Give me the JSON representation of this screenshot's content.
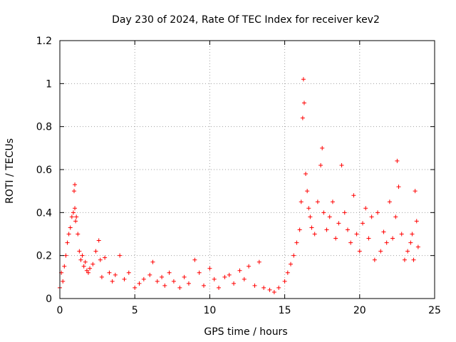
{
  "chart_data": {
    "type": "scatter",
    "title": "Day 230 of 2024, Rate Of TEC Index for receiver kev2",
    "xlabel": "GPS time / hours",
    "ylabel": "ROTI / TECUs",
    "xlim": [
      0,
      25
    ],
    "ylim": [
      0,
      1.2
    ],
    "x_ticks": [
      "0",
      "5",
      "10",
      "15",
      "20",
      "25"
    ],
    "y_ticks": [
      "0",
      "0.2",
      "0.4",
      "0.6",
      "0.8",
      "1",
      "1.2"
    ],
    "grid": true,
    "marker": "+",
    "color": "#ff0000",
    "series": [
      {
        "x": [
          0.0,
          0.1,
          0.2,
          0.3,
          0.4,
          0.5,
          0.6,
          0.7,
          0.8,
          0.9,
          0.95,
          1.0,
          1.0,
          1.05,
          1.1,
          1.2,
          1.3,
          1.4,
          1.5,
          1.6,
          1.7,
          1.8,
          1.9,
          2.0,
          2.2,
          2.4,
          2.6,
          2.7,
          2.8,
          3.0,
          3.3,
          3.5,
          3.7,
          4.0,
          4.3,
          4.6,
          5.0,
          5.3,
          5.6,
          6.0,
          6.2,
          6.5,
          6.8,
          7.0,
          7.3,
          7.6,
          8.0,
          8.3,
          8.6,
          9.0,
          9.3,
          9.6,
          10.0,
          10.3,
          10.6,
          11.0,
          11.3,
          11.6,
          12.0,
          12.3,
          12.6,
          13.0,
          13.3,
          13.6,
          14.0,
          14.3,
          14.6,
          15.0,
          15.2,
          15.4,
          15.6,
          15.8,
          16.0,
          16.1,
          16.2,
          16.25,
          16.3,
          16.4,
          16.5,
          16.6,
          16.7,
          16.8,
          17.0,
          17.2,
          17.4,
          17.5,
          17.6,
          17.8,
          18.0,
          18.2,
          18.4,
          18.6,
          18.8,
          19.0,
          19.2,
          19.4,
          19.6,
          19.8,
          20.0,
          20.2,
          20.4,
          20.6,
          20.8,
          21.0,
          21.2,
          21.4,
          21.6,
          21.8,
          22.0,
          22.2,
          22.4,
          22.5,
          22.6,
          22.8,
          23.0,
          23.2,
          23.4,
          23.5,
          23.6,
          23.7,
          23.8,
          23.9
        ],
        "y": [
          0.05,
          0.12,
          0.08,
          0.15,
          0.2,
          0.26,
          0.3,
          0.33,
          0.38,
          0.4,
          0.5,
          0.53,
          0.42,
          0.36,
          0.38,
          0.3,
          0.22,
          0.18,
          0.2,
          0.15,
          0.17,
          0.13,
          0.12,
          0.14,
          0.16,
          0.22,
          0.27,
          0.18,
          0.1,
          0.19,
          0.12,
          0.08,
          0.11,
          0.2,
          0.09,
          0.12,
          0.05,
          0.07,
          0.09,
          0.11,
          0.17,
          0.08,
          0.1,
          0.06,
          0.12,
          0.08,
          0.05,
          0.1,
          0.07,
          0.18,
          0.12,
          0.06,
          0.14,
          0.09,
          0.05,
          0.1,
          0.11,
          0.07,
          0.13,
          0.09,
          0.15,
          0.06,
          0.17,
          0.05,
          0.04,
          0.03,
          0.05,
          0.08,
          0.12,
          0.16,
          0.2,
          0.26,
          0.32,
          0.45,
          0.84,
          1.02,
          0.91,
          0.58,
          0.5,
          0.42,
          0.38,
          0.33,
          0.3,
          0.45,
          0.62,
          0.7,
          0.4,
          0.32,
          0.38,
          0.45,
          0.28,
          0.35,
          0.62,
          0.4,
          0.32,
          0.26,
          0.48,
          0.3,
          0.22,
          0.35,
          0.42,
          0.28,
          0.38,
          0.18,
          0.4,
          0.22,
          0.31,
          0.26,
          0.45,
          0.28,
          0.38,
          0.64,
          0.52,
          0.3,
          0.18,
          0.22,
          0.26,
          0.3,
          0.18,
          0.5,
          0.36,
          0.24
        ]
      }
    ]
  }
}
